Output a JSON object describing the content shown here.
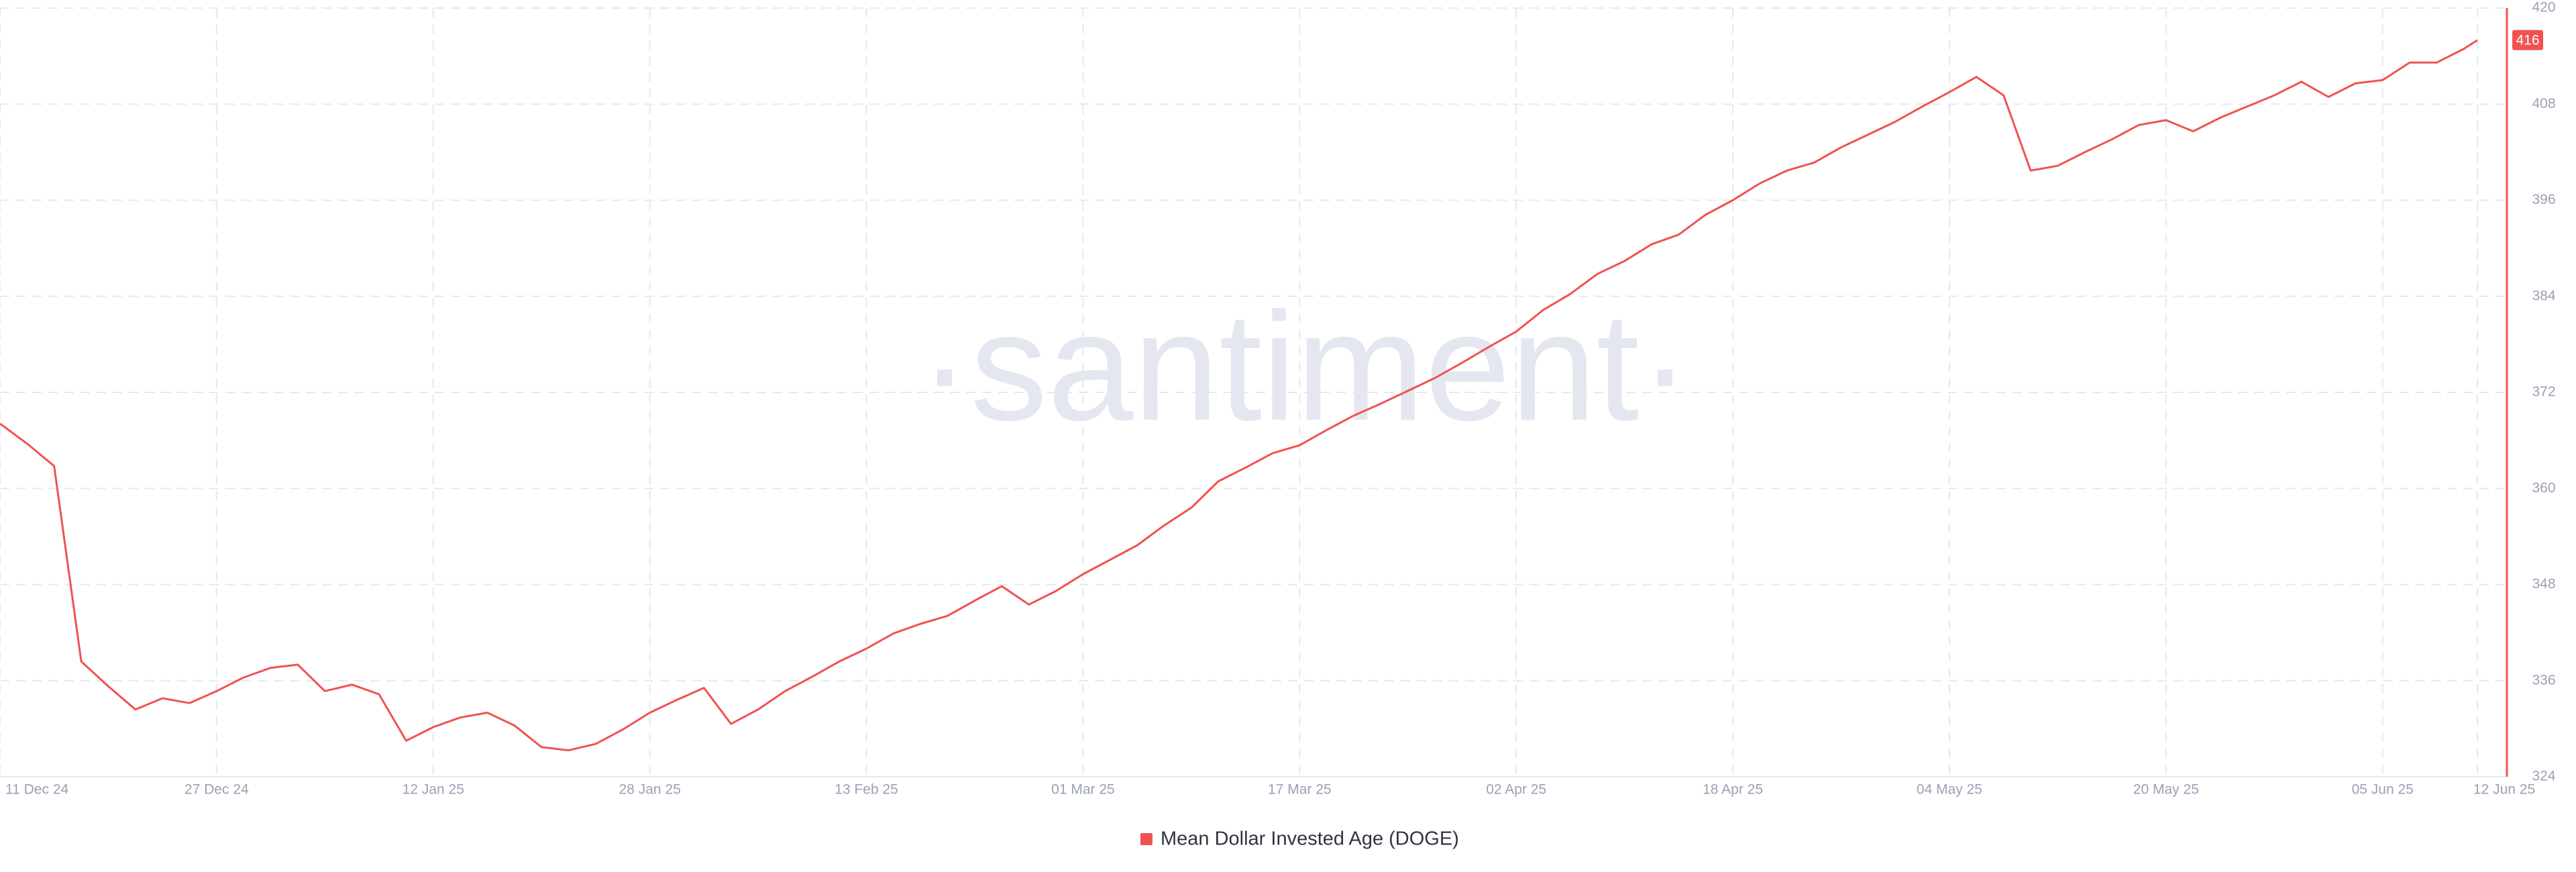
{
  "chart_data": {
    "type": "line",
    "watermark": "·santiment·",
    "x": [
      "2024-12-11",
      "2024-12-13",
      "2024-12-15",
      "2024-12-17",
      "2024-12-19",
      "2024-12-21",
      "2024-12-23",
      "2024-12-25",
      "2024-12-27",
      "2024-12-29",
      "2024-12-31",
      "2025-01-02",
      "2025-01-04",
      "2025-01-06",
      "2025-01-08",
      "2025-01-10",
      "2025-01-12",
      "2025-01-14",
      "2025-01-16",
      "2025-01-18",
      "2025-01-20",
      "2025-01-22",
      "2025-01-24",
      "2025-01-26",
      "2025-01-28",
      "2025-01-30",
      "2025-02-01",
      "2025-02-03",
      "2025-02-05",
      "2025-02-07",
      "2025-02-09",
      "2025-02-11",
      "2025-02-13",
      "2025-02-15",
      "2025-02-17",
      "2025-02-19",
      "2025-02-21",
      "2025-02-23",
      "2025-02-25",
      "2025-02-27",
      "2025-03-01",
      "2025-03-03",
      "2025-03-05",
      "2025-03-07",
      "2025-03-09",
      "2025-03-11",
      "2025-03-13",
      "2025-03-15",
      "2025-03-17",
      "2025-03-19",
      "2025-03-21",
      "2025-03-23",
      "2025-03-25",
      "2025-03-27",
      "2025-03-29",
      "2025-03-31",
      "2025-04-02",
      "2025-04-04",
      "2025-04-06",
      "2025-04-08",
      "2025-04-10",
      "2025-04-12",
      "2025-04-14",
      "2025-04-16",
      "2025-04-18",
      "2025-04-20",
      "2025-04-22",
      "2025-04-24",
      "2025-04-26",
      "2025-04-28",
      "2025-04-30",
      "2025-05-02",
      "2025-05-04",
      "2025-05-06",
      "2025-05-08",
      "2025-05-10",
      "2025-05-12",
      "2025-05-14",
      "2025-05-16",
      "2025-05-18",
      "2025-05-20",
      "2025-05-22",
      "2025-05-24",
      "2025-05-26",
      "2025-05-28",
      "2025-05-30",
      "2025-06-01",
      "2025-06-03",
      "2025-06-05",
      "2025-06-07",
      "2025-06-09",
      "2025-06-11",
      "2025-06-12"
    ],
    "series": [
      {
        "name": "Mean Dollar Invested Age (DOGE)",
        "color": "#f05252",
        "values": [
          368.1,
          365.6,
          362.8,
          338.4,
          335.3,
          332.4,
          333.8,
          333.2,
          334.7,
          336.4,
          337.6,
          338.0,
          334.7,
          335.5,
          334.3,
          328.5,
          330.2,
          331.4,
          332.0,
          330.4,
          327.7,
          327.3,
          328.1,
          329.9,
          332.0,
          333.6,
          335.1,
          330.6,
          332.4,
          334.7,
          336.5,
          338.4,
          340.0,
          341.9,
          343.1,
          344.1,
          346.0,
          347.8,
          345.5,
          347.2,
          349.3,
          351.1,
          352.9,
          355.4,
          357.6,
          360.9,
          362.6,
          364.4,
          365.4,
          367.3,
          369.1,
          370.6,
          372.2,
          373.8,
          375.7,
          377.7,
          379.6,
          382.3,
          384.3,
          386.8,
          388.4,
          390.5,
          391.7,
          394.2,
          396.0,
          398.1,
          399.7,
          400.7,
          402.6,
          404.2,
          405.8,
          407.7,
          409.5,
          411.4,
          409.1,
          399.7,
          400.3,
          402.0,
          403.6,
          405.4,
          406.0,
          404.6,
          406.3,
          407.7,
          409.1,
          410.8,
          408.9,
          410.6,
          411.0,
          413.2,
          413.2,
          414.9,
          416
        ]
      }
    ],
    "xlim": [
      "2024-12-11",
      "2025-06-12"
    ],
    "xticks": [
      {
        "value": "2024-12-11",
        "label": "11 Dec 24"
      },
      {
        "value": "2024-12-27",
        "label": "27 Dec 24"
      },
      {
        "value": "2025-01-12",
        "label": "12 Jan 25"
      },
      {
        "value": "2025-01-28",
        "label": "28 Jan 25"
      },
      {
        "value": "2025-02-13",
        "label": "13 Feb 25"
      },
      {
        "value": "2025-03-01",
        "label": "01 Mar 25"
      },
      {
        "value": "2025-03-17",
        "label": "17 Mar 25"
      },
      {
        "value": "2025-04-02",
        "label": "02 Apr 25"
      },
      {
        "value": "2025-04-18",
        "label": "18 Apr 25"
      },
      {
        "value": "2025-05-04",
        "label": "04 May 25"
      },
      {
        "value": "2025-05-20",
        "label": "20 May 25"
      },
      {
        "value": "2025-06-05",
        "label": "05 Jun 25"
      },
      {
        "value": "2025-06-12",
        "label": "12 Jun 25"
      }
    ],
    "ylim": [
      324,
      420
    ],
    "yticks": [
      324,
      336,
      348,
      360,
      372,
      384,
      396,
      408,
      420
    ],
    "grid": true,
    "legend": "bottom"
  }
}
